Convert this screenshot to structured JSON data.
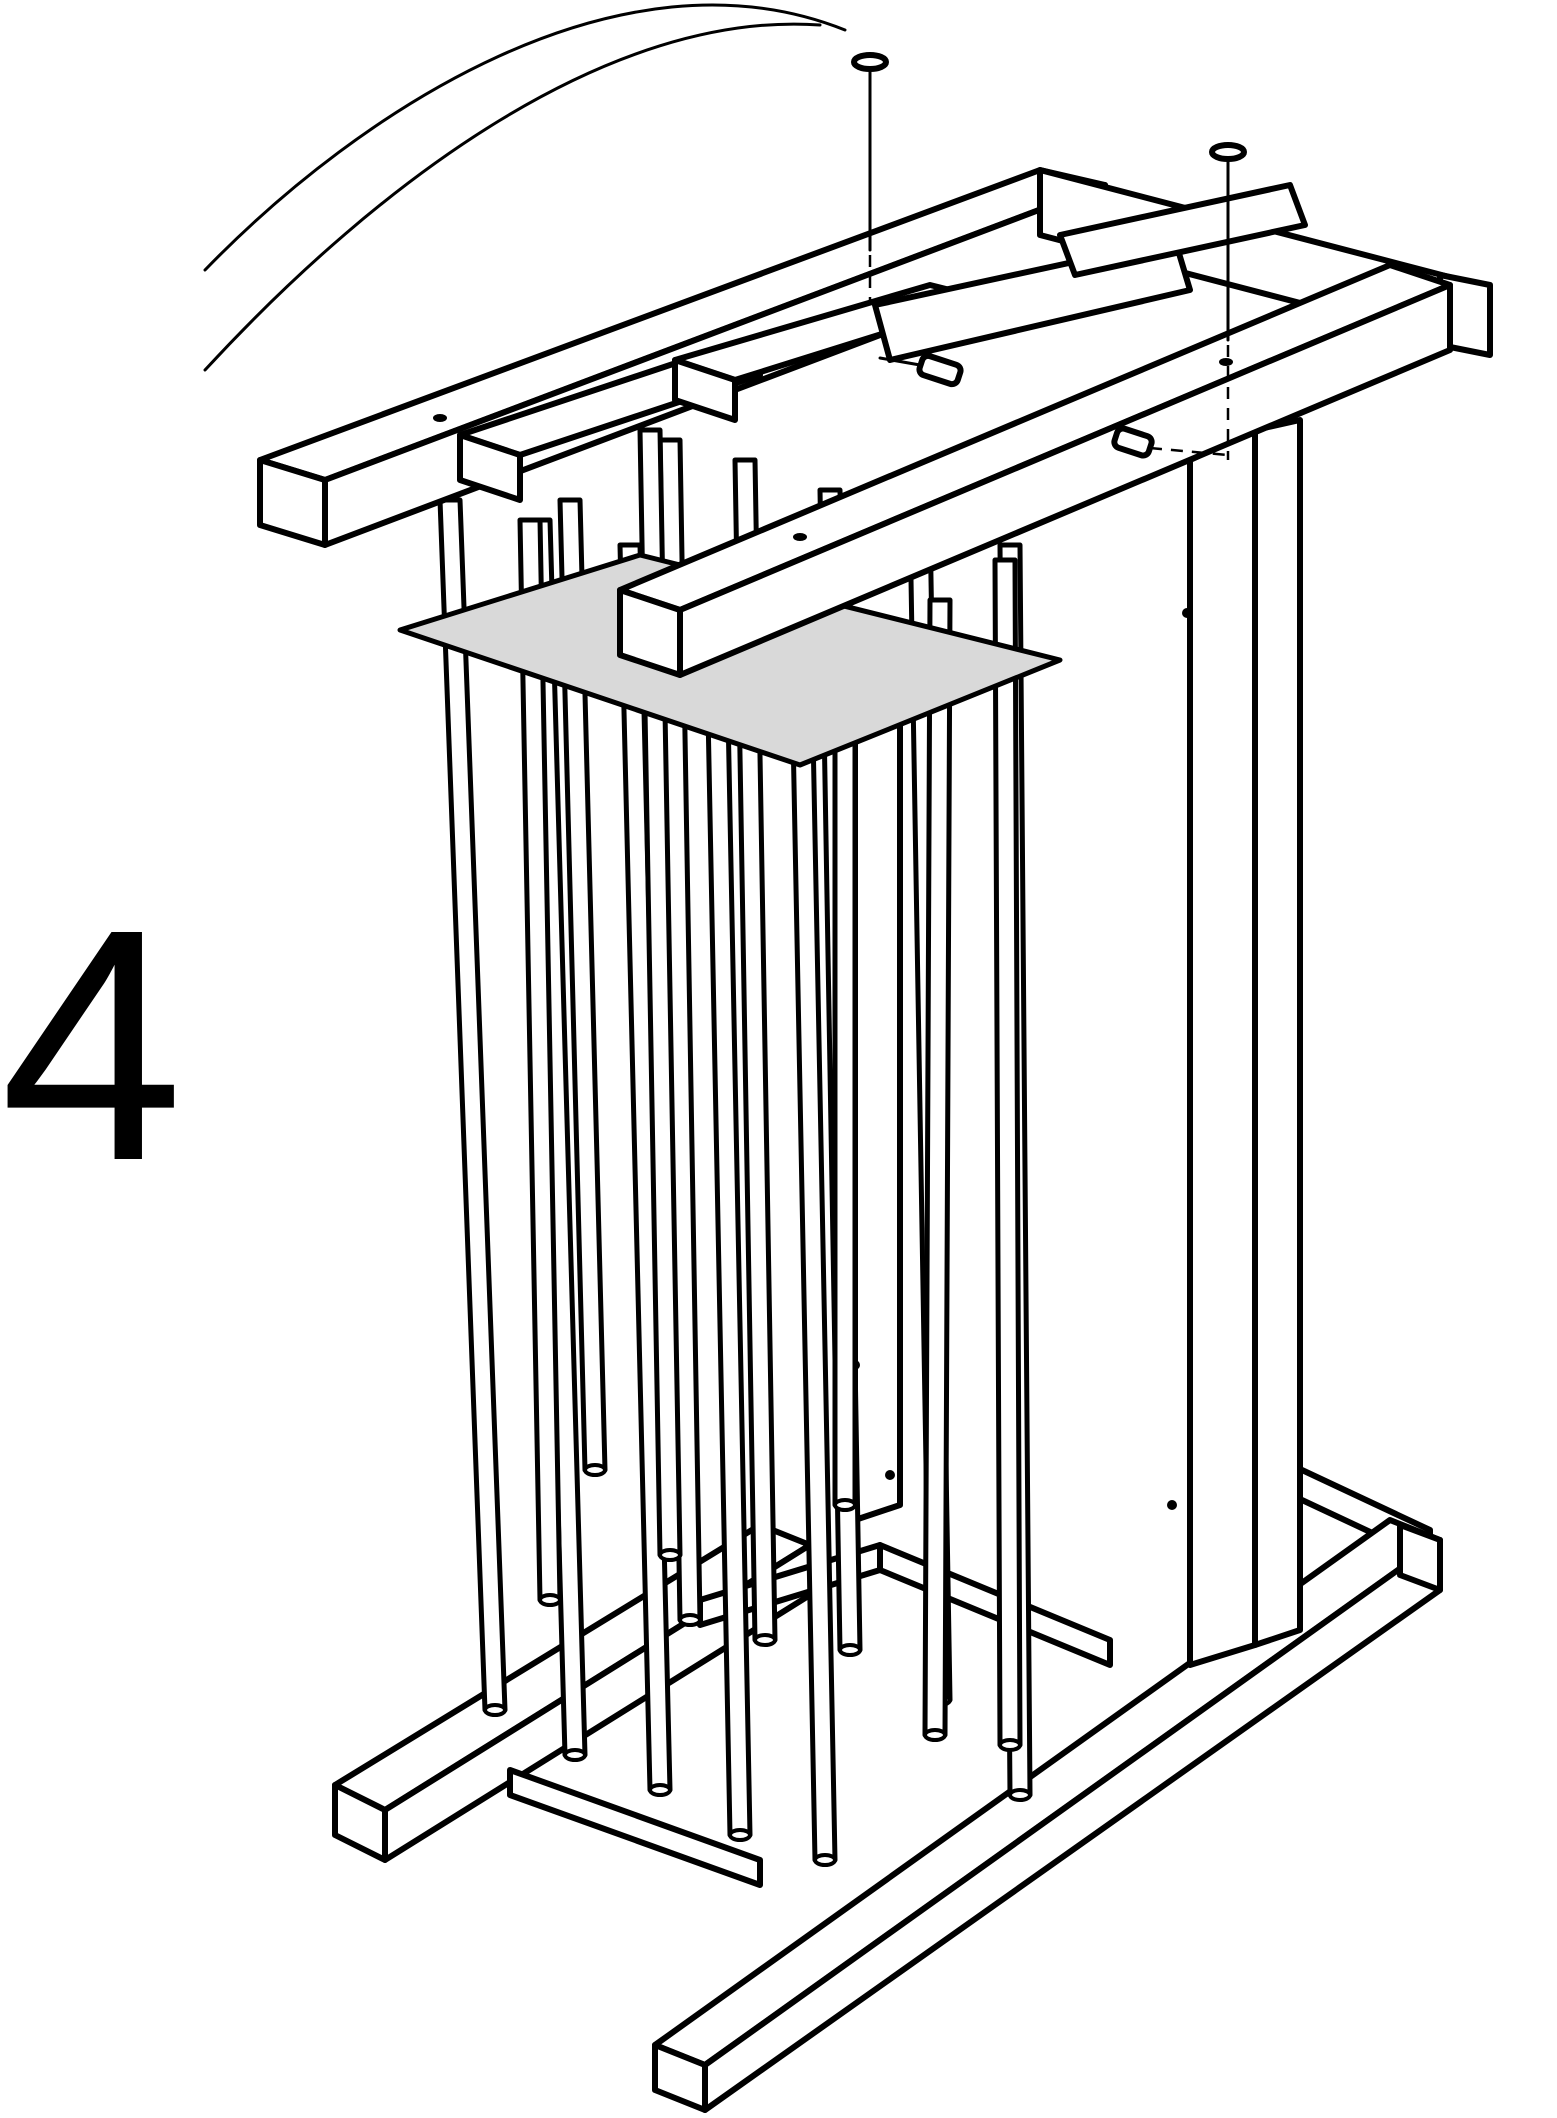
{
  "step": {
    "number": "4"
  },
  "diagram": {
    "parts": [
      {
        "name": "top-frame",
        "kind": "wooden-frame"
      },
      {
        "name": "bottom-frame",
        "kind": "wooden-frame"
      },
      {
        "name": "spindle-guide-sheet",
        "kind": "cardboard-sheet"
      },
      {
        "name": "spindle",
        "kind": "vertical-rod"
      },
      {
        "name": "corner-post",
        "kind": "post"
      },
      {
        "name": "screw",
        "kind": "fastener"
      },
      {
        "name": "dowel",
        "kind": "fastener"
      },
      {
        "name": "swing-arc",
        "kind": "motion-line"
      }
    ],
    "colors": {
      "line": "#000000",
      "guide_sheet_fill": "#d9d9d9",
      "background": "#ffffff"
    },
    "icons": [
      "screw-icon",
      "dowel-icon",
      "rotation-arc-icon"
    ]
  }
}
